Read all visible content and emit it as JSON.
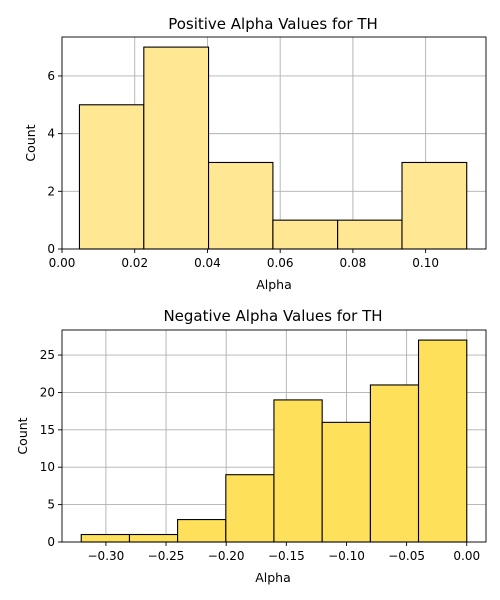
{
  "chart_data": [
    {
      "type": "bar",
      "title": "Positive Alpha Values for TH",
      "xlabel": "Alpha",
      "ylabel": "Count",
      "bin_edges": [
        0.0048,
        0.0225,
        0.0403,
        0.058,
        0.0758,
        0.0935,
        0.1113
      ],
      "values": [
        5,
        7,
        3,
        1,
        1,
        3
      ],
      "xlim": [
        0.0,
        0.1166
      ],
      "ylim": [
        0,
        7.35
      ],
      "xticks": [
        0.0,
        0.02,
        0.04,
        0.06,
        0.08,
        0.1
      ],
      "xtick_labels": [
        "0.00",
        "0.02",
        "0.04",
        "0.06",
        "0.08",
        "0.10"
      ],
      "yticks": [
        0,
        2,
        4,
        6
      ],
      "ytick_labels": [
        "0",
        "2",
        "4",
        "6"
      ],
      "grid": true,
      "bar_color": "#ffe794",
      "bar_opacity": 1
    },
    {
      "type": "bar",
      "title": "Negative Alpha Values for TH",
      "xlabel": "Alpha",
      "ylabel": "Count",
      "bin_edges": [
        -0.3205,
        -0.2804,
        -0.2404,
        -0.2003,
        -0.1603,
        -0.1202,
        -0.0801,
        -0.0401,
        0.0
      ],
      "values": [
        1,
        1,
        3,
        9,
        19,
        16,
        21,
        27
      ],
      "xlim": [
        -0.3365,
        0.016
      ],
      "ylim": [
        0,
        28.35
      ],
      "xticks": [
        -0.3,
        -0.25,
        -0.2,
        -0.15,
        -0.1,
        -0.05,
        0.0
      ],
      "xtick_labels": [
        "−0.30",
        "−0.25",
        "−0.20",
        "−0.15",
        "−0.10",
        "−0.05",
        "0.00"
      ],
      "yticks": [
        0,
        5,
        10,
        15,
        20,
        25
      ],
      "ytick_labels": [
        "0",
        "5",
        "10",
        "15",
        "20",
        "25"
      ],
      "grid": true,
      "bar_color": "#ffe05a",
      "bar_opacity": 1
    }
  ]
}
